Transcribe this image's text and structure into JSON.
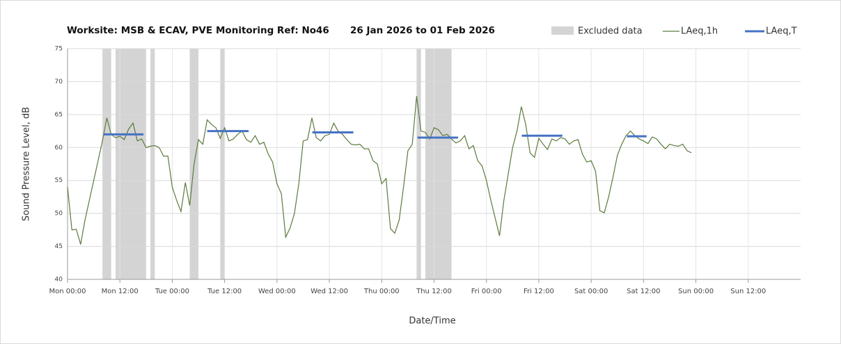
{
  "chart_data": {
    "type": "line",
    "title": [
      "Worksite: MSB & ECAV, PVE",
      "Monitoring Ref: No46",
      "26 Jan 2026 to 01 Feb 2026"
    ],
    "x_label": "Date/Time",
    "y_label": "Sound Pressure Level, dB",
    "xlim": [
      0,
      168
    ],
    "ylim": [
      40,
      75
    ],
    "xticks": [
      {
        "value": 0,
        "label": "Mon 00:00"
      },
      {
        "value": 12,
        "label": "Mon 12:00"
      },
      {
        "value": 24,
        "label": "Tue 00:00"
      },
      {
        "value": 36,
        "label": "Tue 12:00"
      },
      {
        "value": 48,
        "label": "Wed 00:00"
      },
      {
        "value": 60,
        "label": "Wed 12:00"
      },
      {
        "value": 72,
        "label": "Thu 00:00"
      },
      {
        "value": 84,
        "label": "Thu 12:00"
      },
      {
        "value": 96,
        "label": "Fri 00:00"
      },
      {
        "value": 108,
        "label": "Fri 12:00"
      },
      {
        "value": 120,
        "label": "Sat 00:00"
      },
      {
        "value": 132,
        "label": "Sat 12:00"
      },
      {
        "value": 144,
        "label": "Sun 00:00"
      },
      {
        "value": 156,
        "label": "Sun 12:00"
      }
    ],
    "yticks": [
      40,
      45,
      50,
      55,
      60,
      65,
      70,
      75
    ],
    "grid": true,
    "excluded": {
      "name": "Excluded data",
      "color": "#d4d4d4",
      "ranges": [
        [
          8,
          10
        ],
        [
          11,
          18
        ],
        [
          19,
          20
        ],
        [
          28,
          30
        ],
        [
          35,
          36
        ],
        [
          80,
          81
        ],
        [
          82,
          88
        ]
      ]
    },
    "series": [
      {
        "name": "LAeq,1h",
        "color": "#5b7a3c",
        "x": [
          0,
          1,
          2,
          3,
          4,
          5,
          6,
          7,
          8,
          9,
          10,
          11,
          12,
          13,
          14,
          15,
          16,
          17,
          18,
          19,
          20,
          21,
          22,
          23,
          24,
          25,
          26,
          27,
          28,
          29,
          30,
          31,
          32,
          33,
          34,
          35,
          36,
          37,
          38,
          39,
          40,
          41,
          42,
          43,
          44,
          45,
          46,
          47,
          48,
          49,
          50,
          51,
          52,
          53,
          54,
          55,
          56,
          57,
          58,
          59,
          60,
          61,
          62,
          63,
          64,
          65,
          66,
          67,
          68,
          69,
          70,
          71,
          72,
          73,
          74,
          75,
          76,
          77,
          78,
          79,
          80,
          81,
          82,
          83,
          84,
          85,
          86,
          87,
          88,
          89,
          90,
          91,
          92,
          93,
          94,
          95,
          96,
          97,
          98,
          99,
          100,
          101,
          102,
          103,
          104,
          105,
          106,
          107,
          108,
          109,
          110,
          111,
          112,
          113,
          114,
          115,
          116,
          117,
          118,
          119,
          120,
          121,
          122,
          123,
          124,
          125,
          126,
          127,
          128,
          129,
          130,
          131,
          132,
          133,
          134,
          135,
          136,
          137,
          138,
          139,
          140,
          141,
          142,
          143
        ],
        "values": [
          54,
          47.5,
          47.6,
          45.3,
          49,
          52,
          55,
          58,
          61,
          64.5,
          62,
          61.5,
          61.7,
          61.2,
          62.8,
          63.7,
          61,
          61.3,
          60,
          60.2,
          60.3,
          60,
          58.7,
          58.7,
          54,
          52,
          50.3,
          54.7,
          51.2,
          57.5,
          61.2,
          60.5,
          64.2,
          63.5,
          63,
          61.4,
          63,
          61,
          61.3,
          62,
          62.5,
          61.2,
          60.8,
          61.8,
          60.5,
          60.8,
          59,
          57.8,
          54.5,
          53,
          46.4,
          47.8,
          50,
          54.5,
          61,
          61.2,
          64.5,
          61.5,
          61,
          61.8,
          62,
          63.7,
          62.5,
          62,
          61.2,
          60.5,
          60.4,
          60.5,
          59.8,
          59.8,
          58,
          57.5,
          54.5,
          55.3,
          47.7,
          47,
          49,
          54,
          59.5,
          60.5,
          67.8,
          62.5,
          62.3,
          61.3,
          63,
          62.7,
          61.8,
          62,
          61.3,
          60.7,
          61,
          61.8,
          59.8,
          60.3,
          58,
          57.2,
          55,
          52,
          49.3,
          46.6,
          52,
          56,
          60,
          62.5,
          66.2,
          63.5,
          59.2,
          58.5,
          61.4,
          60.5,
          59.7,
          61.3,
          61,
          61.5,
          61.3,
          60.5,
          61,
          61.2,
          59,
          57.8,
          58,
          56.4,
          50.4,
          50.1,
          52.5,
          55.5,
          58.8,
          60.5,
          61.8,
          62.5,
          61.8,
          61.3,
          61,
          60.6,
          61.6,
          61.3,
          60.5,
          59.8,
          60.5,
          60.3,
          60.2,
          60.5,
          59.5,
          59.2
        ]
      },
      {
        "name": "LAeq,T",
        "color": "#4472c4",
        "x_start": [
          8.3,
          32,
          56.1,
          80.2,
          104.1,
          128.2
        ],
        "x_end": [
          17.4,
          41.5,
          65.5,
          89.5,
          113.4,
          132.7
        ],
        "values": [
          62,
          62.5,
          62.3,
          61.5,
          61.8,
          61.7
        ]
      }
    ]
  }
}
